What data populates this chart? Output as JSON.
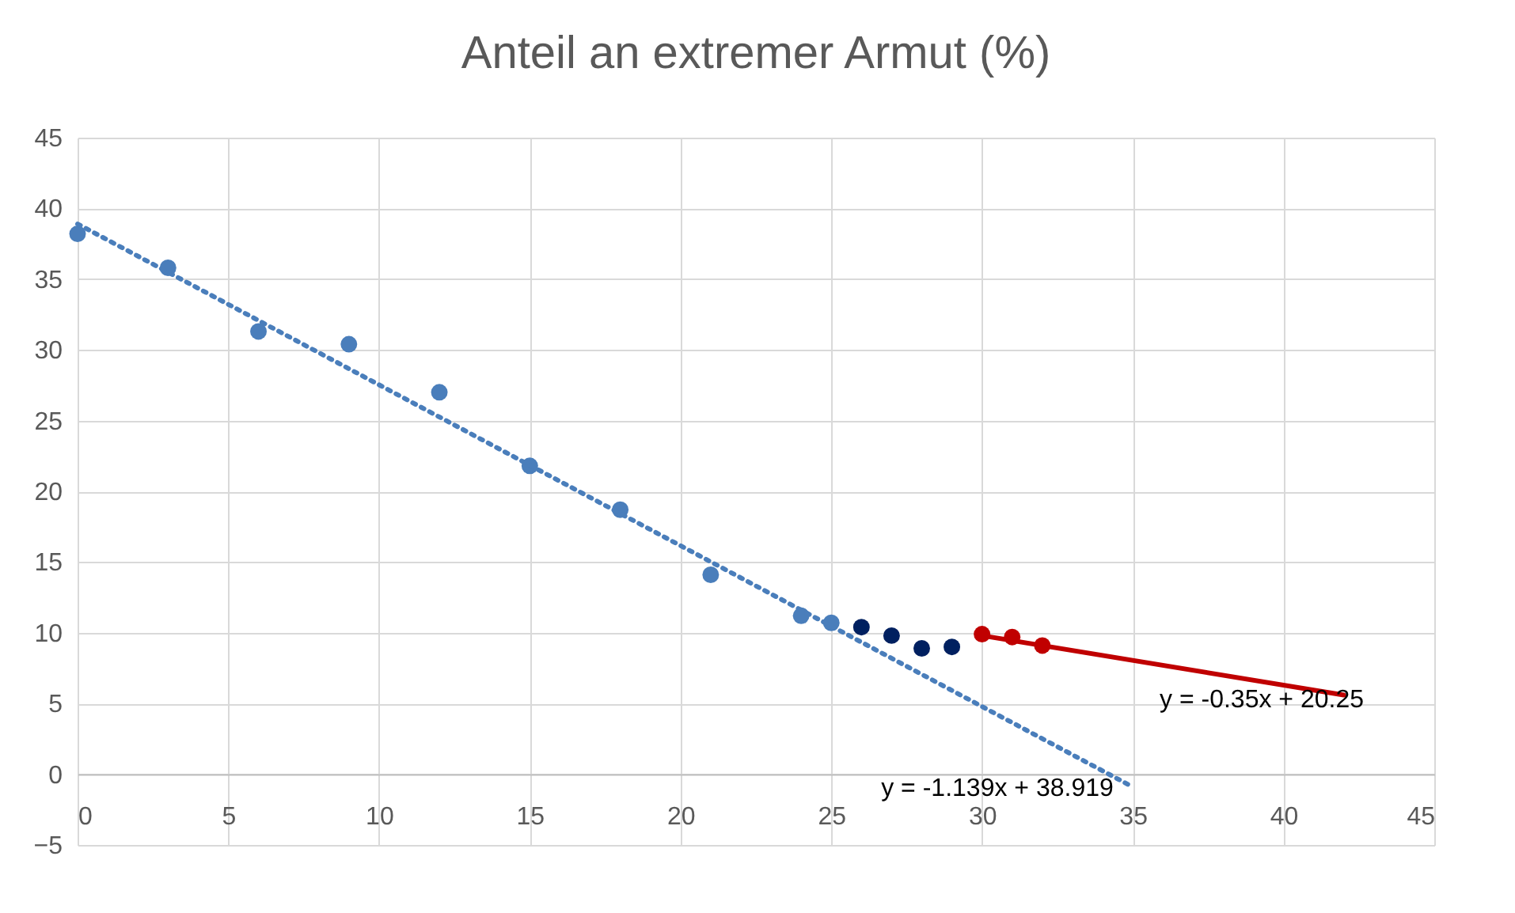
{
  "chart_data": {
    "type": "scatter",
    "title": "Anteil an extremer Armut (%)",
    "xlim": [
      0,
      45
    ],
    "xticks": [
      0,
      5,
      10,
      15,
      20,
      25,
      30,
      35,
      40,
      45
    ],
    "ylim": [
      -5,
      45
    ],
    "yticks": [
      -5,
      0,
      5,
      10,
      15,
      20,
      25,
      30,
      35,
      40,
      45
    ],
    "grid": true,
    "series": [
      {
        "color": "#4a7ebb",
        "marker": "circle",
        "x": [
          0,
          3,
          6,
          9,
          12,
          15,
          18,
          21,
          24,
          25
        ],
        "values": [
          38.2,
          35.8,
          31.3,
          30.4,
          27.0,
          21.8,
          18.7,
          14.1,
          11.2,
          10.7
        ]
      },
      {
        "color": "#002060",
        "marker": "circle",
        "x": [
          26,
          27,
          28,
          29
        ],
        "values": [
          10.4,
          9.8,
          8.9,
          9.0
        ]
      },
      {
        "type": "line",
        "color": "#4a7ebb",
        "line_style": "dotted",
        "x": [
          0,
          35
        ],
        "values": [
          38.9,
          -0.9
        ]
      },
      {
        "type": "line",
        "color": "#c00000",
        "line_style": "solid",
        "x": [
          30,
          42
        ],
        "values": [
          9.8,
          5.6
        ]
      },
      {
        "color": "#c00000",
        "marker": "circle",
        "x": [
          30,
          31,
          32
        ],
        "values": [
          9.9,
          9.7,
          9.1
        ]
      }
    ],
    "annotations": [
      "y = -0.35x + 20.25",
      "y = -1.139x + 38.919"
    ]
  }
}
